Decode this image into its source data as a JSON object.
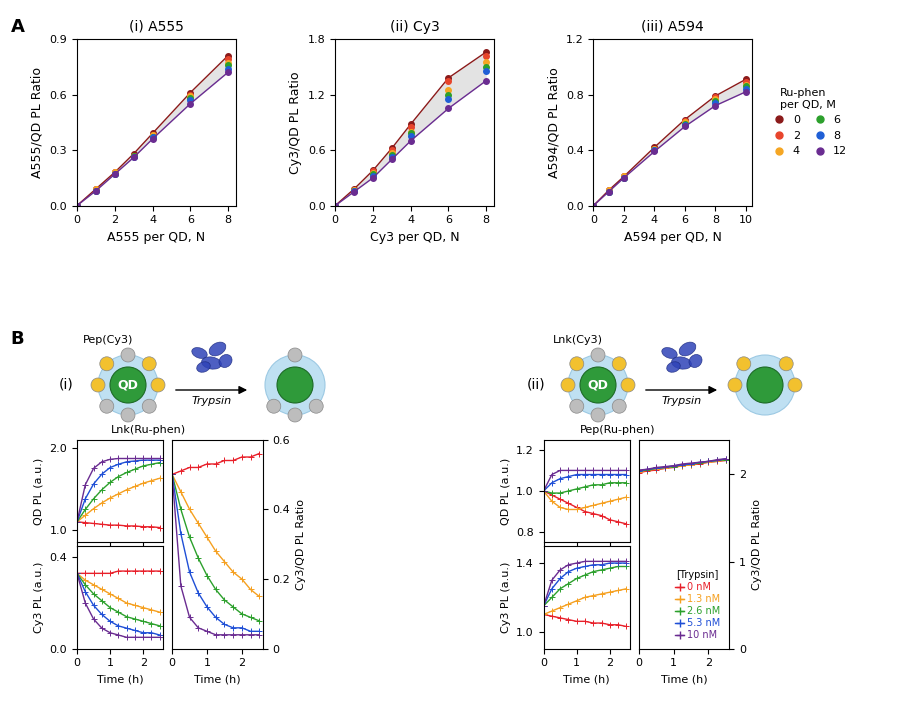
{
  "panel_labels": [
    "A",
    "B"
  ],
  "diagrams": [
    {
      "label": "(i)",
      "top_label": "Pep(Cy3)",
      "bottom_label": "Lnk(Ru-phen)",
      "center": "QD",
      "enzyme": "Trypsin"
    },
    {
      "label": "(ii)",
      "top_label": "Lnk(Cy3)",
      "bottom_label": "Pep(Ru-phen)",
      "center": "QD",
      "enzyme": "Trypsin"
    }
  ],
  "chart_data": [
    {
      "type": "scatter",
      "title": "(i) A555",
      "xlabel": "A555 per QD, N",
      "ylabel": "A555/QD PL Ratio",
      "marker": "o",
      "x": [
        0,
        1,
        2,
        3,
        4,
        6,
        8
      ],
      "xlim": [
        0,
        8.4
      ],
      "xticks": [
        0,
        2,
        4,
        6,
        8
      ],
      "ylim": [
        0,
        0.9
      ],
      "yticks": [
        {
          "value": 0,
          "label": "0.0"
        },
        0.3,
        0.6,
        0.9
      ],
      "series": [
        {
          "name": "0",
          "color": "#8b1a1a",
          "line_style": "solid",
          "values": [
            0,
            0.09,
            0.18,
            0.28,
            0.39,
            0.61,
            0.81
          ]
        },
        {
          "name": "2",
          "color": "#e8452c",
          "line_style": "none",
          "values": [
            0,
            0.09,
            0.18,
            0.27,
            0.38,
            0.6,
            0.79
          ]
        },
        {
          "name": "4",
          "color": "#f5a623",
          "line_style": "none",
          "values": [
            0,
            0.09,
            0.18,
            0.27,
            0.38,
            0.59,
            0.77
          ]
        },
        {
          "name": "6",
          "color": "#2ca02c",
          "line_style": "none",
          "values": [
            0,
            0.08,
            0.17,
            0.27,
            0.37,
            0.58,
            0.76
          ]
        },
        {
          "name": "8",
          "color": "#1f5fd6",
          "line_style": "none",
          "values": [
            0,
            0.08,
            0.17,
            0.26,
            0.37,
            0.57,
            0.74
          ]
        },
        {
          "name": "12",
          "color": "#6a2c91",
          "line_style": "solid",
          "values": [
            0,
            0.08,
            0.17,
            0.26,
            0.36,
            0.55,
            0.72
          ]
        }
      ]
    },
    {
      "type": "scatter",
      "title": "(ii) Cy3",
      "xlabel": "Cy3 per QD, N",
      "ylabel": "Cy3/QD PL Ratio",
      "marker": "o",
      "x": [
        0,
        1,
        2,
        3,
        4,
        6,
        8
      ],
      "xlim": [
        0,
        8.4
      ],
      "xticks": [
        0,
        2,
        4,
        6,
        8
      ],
      "ylim": [
        0,
        1.8
      ],
      "yticks": [
        {
          "value": 0,
          "label": "0.0"
        },
        0.6,
        1.2,
        1.8
      ],
      "series": [
        {
          "name": "0",
          "color": "#8b1a1a",
          "line_style": "solid",
          "values": [
            0,
            0.18,
            0.38,
            0.62,
            0.88,
            1.38,
            1.66
          ]
        },
        {
          "name": "2",
          "color": "#e8452c",
          "line_style": "none",
          "values": [
            0,
            0.17,
            0.37,
            0.6,
            0.85,
            1.35,
            1.62
          ]
        },
        {
          "name": "4",
          "color": "#f5a623",
          "line_style": "none",
          "values": [
            0,
            0.17,
            0.35,
            0.57,
            0.8,
            1.25,
            1.55
          ]
        },
        {
          "name": "6",
          "color": "#2ca02c",
          "line_style": "none",
          "values": [
            0,
            0.16,
            0.34,
            0.55,
            0.78,
            1.2,
            1.5
          ]
        },
        {
          "name": "8",
          "color": "#1f5fd6",
          "line_style": "none",
          "values": [
            0,
            0.16,
            0.32,
            0.53,
            0.75,
            1.15,
            1.45
          ]
        },
        {
          "name": "12",
          "color": "#6a2c91",
          "line_style": "solid",
          "values": [
            0,
            0.15,
            0.3,
            0.5,
            0.7,
            1.05,
            1.35
          ]
        }
      ]
    },
    {
      "type": "scatter",
      "title": "(iii) A594",
      "xlabel": "A594 per QD, N",
      "ylabel": "A594/QD PL Ratio",
      "marker": "o",
      "x": [
        0,
        1,
        2,
        4,
        6,
        8,
        10
      ],
      "xlim": [
        0,
        10.4
      ],
      "xticks": [
        0,
        2,
        4,
        6,
        8,
        10
      ],
      "ylim": [
        0,
        1.2
      ],
      "yticks": [
        {
          "value": 0,
          "label": "0.0"
        },
        0.4,
        0.8,
        1.2
      ],
      "legend": "center left",
      "legend_title": "Ru-phen\nper QD, M",
      "series": [
        {
          "name": "0",
          "color": "#8b1a1a",
          "line_style": "solid",
          "values": [
            0,
            0.11,
            0.21,
            0.42,
            0.62,
            0.79,
            0.91
          ]
        },
        {
          "name": "2",
          "color": "#e8452c",
          "line_style": "none",
          "values": [
            0,
            0.11,
            0.21,
            0.41,
            0.61,
            0.78,
            0.89
          ]
        },
        {
          "name": "4",
          "color": "#f5a623",
          "line_style": "none",
          "values": [
            0,
            0.11,
            0.21,
            0.41,
            0.6,
            0.77,
            0.87
          ]
        },
        {
          "name": "6",
          "color": "#2ca02c",
          "line_style": "none",
          "values": [
            0,
            0.1,
            0.2,
            0.4,
            0.59,
            0.75,
            0.86
          ]
        },
        {
          "name": "8",
          "color": "#1f5fd6",
          "line_style": "none",
          "values": [
            0,
            0.1,
            0.2,
            0.4,
            0.58,
            0.74,
            0.84
          ]
        },
        {
          "name": "12",
          "color": "#6a2c91",
          "line_style": "solid",
          "values": [
            0,
            0.1,
            0.2,
            0.39,
            0.57,
            0.72,
            0.82
          ]
        }
      ]
    },
    {
      "type": "line",
      "ylabel": "QD PL (a.u.)",
      "marker": "+",
      "line_style": "solid",
      "tick_labels": "y",
      "x": [
        0,
        0.25,
        0.5,
        0.75,
        1.0,
        1.25,
        1.5,
        1.75,
        2.0,
        2.25,
        2.5
      ],
      "xlim": [
        0,
        2.6
      ],
      "xticks": [
        0,
        1,
        2
      ],
      "ylim": [
        0.85,
        2.1
      ],
      "yticks": [
        {
          "value": 1,
          "label": "1.0"
        },
        {
          "value": 2,
          "label": "2.0"
        }
      ],
      "series": [
        {
          "color": "#e8202a",
          "values": [
            1.1,
            1.09,
            1.08,
            1.07,
            1.06,
            1.06,
            1.05,
            1.05,
            1.04,
            1.04,
            1.03
          ]
        },
        {
          "color": "#f5a020",
          "values": [
            1.1,
            1.18,
            1.26,
            1.33,
            1.39,
            1.44,
            1.49,
            1.53,
            1.57,
            1.6,
            1.63
          ]
        },
        {
          "color": "#2ca02c",
          "values": [
            1.1,
            1.25,
            1.38,
            1.49,
            1.58,
            1.65,
            1.7,
            1.74,
            1.78,
            1.8,
            1.82
          ]
        },
        {
          "color": "#1f4fd6",
          "values": [
            1.1,
            1.38,
            1.56,
            1.68,
            1.76,
            1.8,
            1.83,
            1.84,
            1.85,
            1.85,
            1.85
          ]
        },
        {
          "color": "#6a2c91",
          "values": [
            1.1,
            1.55,
            1.75,
            1.83,
            1.86,
            1.87,
            1.87,
            1.87,
            1.87,
            1.87,
            1.87
          ]
        }
      ]
    },
    {
      "type": "line",
      "xlabel": "Time (h)",
      "ylabel": "Cy3 PL (a.u.)",
      "marker": "+",
      "line_style": "solid",
      "x": [
        0,
        0.25,
        0.5,
        0.75,
        1.0,
        1.25,
        1.5,
        1.75,
        2.0,
        2.25,
        2.5
      ],
      "xlim": [
        0,
        2.6
      ],
      "xticks": [
        0,
        1,
        2
      ],
      "ylim": [
        0,
        0.45
      ],
      "yticks": [
        {
          "value": 0,
          "label": "0.0"
        },
        0.4
      ],
      "series": [
        {
          "color": "#e8202a",
          "values": [
            0.33,
            0.33,
            0.33,
            0.33,
            0.33,
            0.34,
            0.34,
            0.34,
            0.34,
            0.34,
            0.34
          ]
        },
        {
          "color": "#f5a020",
          "values": [
            0.33,
            0.3,
            0.28,
            0.26,
            0.24,
            0.22,
            0.2,
            0.19,
            0.18,
            0.17,
            0.16
          ]
        },
        {
          "color": "#2ca02c",
          "values": [
            0.33,
            0.28,
            0.24,
            0.21,
            0.18,
            0.16,
            0.14,
            0.13,
            0.12,
            0.11,
            0.1
          ]
        },
        {
          "color": "#1f4fd6",
          "values": [
            0.33,
            0.25,
            0.19,
            0.15,
            0.12,
            0.1,
            0.09,
            0.08,
            0.07,
            0.07,
            0.06
          ]
        },
        {
          "color": "#6a2c91",
          "values": [
            0.33,
            0.2,
            0.13,
            0.09,
            0.07,
            0.06,
            0.05,
            0.05,
            0.05,
            0.05,
            0.05
          ]
        }
      ]
    },
    {
      "type": "line",
      "xlabel": "Time (h)",
      "ylabel": "Cy3/QD PL Ratio",
      "marker": "+",
      "line_style": "solid",
      "x": [
        0,
        0.25,
        0.5,
        0.75,
        1.0,
        1.25,
        1.5,
        1.75,
        2.0,
        2.25,
        2.5
      ],
      "xlim": [
        0,
        2.6
      ],
      "xticks": [
        0,
        1,
        2
      ],
      "ylim": [
        0,
        0.6
      ],
      "yticks": [
        0,
        0.2,
        0.4,
        0.6
      ],
      "series": [
        {
          "color": "#e8202a",
          "values": [
            0.5,
            0.51,
            0.52,
            0.52,
            0.53,
            0.53,
            0.54,
            0.54,
            0.55,
            0.55,
            0.56
          ]
        },
        {
          "color": "#f5a020",
          "values": [
            0.5,
            0.45,
            0.4,
            0.36,
            0.32,
            0.28,
            0.25,
            0.22,
            0.2,
            0.17,
            0.15
          ]
        },
        {
          "color": "#2ca02c",
          "values": [
            0.5,
            0.4,
            0.32,
            0.26,
            0.21,
            0.17,
            0.14,
            0.12,
            0.1,
            0.09,
            0.08
          ]
        },
        {
          "color": "#1f4fd6",
          "values": [
            0.5,
            0.33,
            0.22,
            0.16,
            0.12,
            0.09,
            0.07,
            0.06,
            0.06,
            0.05,
            0.05
          ]
        },
        {
          "color": "#6a2c91",
          "values": [
            0.5,
            0.18,
            0.09,
            0.06,
            0.05,
            0.04,
            0.04,
            0.04,
            0.04,
            0.04,
            0.04
          ]
        }
      ]
    },
    {
      "type": "line",
      "ylabel": "QD PL (a.u.)",
      "marker": "+",
      "line_style": "solid",
      "tick_labels": "y",
      "x": [
        0,
        0.25,
        0.5,
        0.75,
        1.0,
        1.25,
        1.5,
        1.75,
        2.0,
        2.25,
        2.5
      ],
      "xlim": [
        0,
        2.6
      ],
      "xticks": [
        0,
        1,
        2
      ],
      "ylim": [
        0.75,
        1.25
      ],
      "yticks": [
        0.8,
        {
          "value": 1,
          "label": "1.0"
        },
        1.2
      ],
      "series": [
        {
          "color": "#e8202a",
          "values": [
            1.0,
            0.98,
            0.96,
            0.94,
            0.92,
            0.9,
            0.89,
            0.88,
            0.86,
            0.85,
            0.84
          ]
        },
        {
          "color": "#f5a020",
          "values": [
            1.0,
            0.95,
            0.92,
            0.91,
            0.91,
            0.92,
            0.93,
            0.94,
            0.95,
            0.96,
            0.97
          ]
        },
        {
          "color": "#2ca02c",
          "values": [
            1.0,
            0.99,
            0.99,
            1.0,
            1.01,
            1.02,
            1.03,
            1.03,
            1.04,
            1.04,
            1.04
          ]
        },
        {
          "color": "#1f4fd6",
          "values": [
            1.0,
            1.04,
            1.06,
            1.07,
            1.08,
            1.08,
            1.08,
            1.08,
            1.08,
            1.08,
            1.08
          ]
        },
        {
          "color": "#6a2c91",
          "values": [
            1.0,
            1.08,
            1.1,
            1.1,
            1.1,
            1.1,
            1.1,
            1.1,
            1.1,
            1.1,
            1.1
          ]
        }
      ]
    },
    {
      "type": "line",
      "xlabel": "Time (h)",
      "ylabel": "Cy3 PL (a.u.)",
      "marker": "+",
      "line_style": "solid",
      "x": [
        0,
        0.25,
        0.5,
        0.75,
        1.0,
        1.25,
        1.5,
        1.75,
        2.0,
        2.25,
        2.5
      ],
      "xlim": [
        0,
        2.6
      ],
      "xticks": [
        0,
        1,
        2
      ],
      "ylim": [
        0.9,
        1.5
      ],
      "yticks": [
        {
          "value": 1,
          "label": "1.0"
        },
        1.4
      ],
      "series": [
        {
          "color": "#e8202a",
          "values": [
            1.1,
            1.09,
            1.08,
            1.07,
            1.06,
            1.06,
            1.05,
            1.05,
            1.04,
            1.04,
            1.03
          ]
        },
        {
          "color": "#f5a020",
          "values": [
            1.1,
            1.12,
            1.14,
            1.16,
            1.18,
            1.2,
            1.21,
            1.22,
            1.23,
            1.24,
            1.25
          ]
        },
        {
          "color": "#2ca02c",
          "values": [
            1.15,
            1.2,
            1.25,
            1.28,
            1.31,
            1.33,
            1.35,
            1.36,
            1.37,
            1.38,
            1.38
          ]
        },
        {
          "color": "#1f4fd6",
          "values": [
            1.15,
            1.25,
            1.31,
            1.35,
            1.37,
            1.38,
            1.39,
            1.39,
            1.4,
            1.4,
            1.4
          ]
        },
        {
          "color": "#6a2c91",
          "values": [
            1.15,
            1.3,
            1.36,
            1.39,
            1.4,
            1.41,
            1.41,
            1.41,
            1.41,
            1.41,
            1.41
          ]
        }
      ]
    },
    {
      "type": "line",
      "xlabel": "Time (h)",
      "ylabel": "Cy3/QD PL Ratio",
      "marker": "+",
      "line_style": "solid",
      "x": [
        0,
        0.25,
        0.5,
        0.75,
        1.0,
        1.25,
        1.5,
        1.75,
        2.0,
        2.25,
        2.5
      ],
      "xlim": [
        0,
        2.6
      ],
      "xticks": [
        0,
        1,
        2
      ],
      "ylim": [
        0,
        2.4
      ],
      "yticks": [
        0,
        1,
        2
      ],
      "legend": "lower right",
      "legend_title": "[Trypsin]",
      "series": [
        {
          "name": "0 nM",
          "color": "#e8202a",
          "values": [
            2.02,
            2.04,
            2.05,
            2.07,
            2.08,
            2.1,
            2.11,
            2.12,
            2.14,
            2.15,
            2.16
          ]
        },
        {
          "name": "1.3 nM",
          "color": "#f5a020",
          "values": [
            2.03,
            2.05,
            2.06,
            2.07,
            2.09,
            2.1,
            2.11,
            2.13,
            2.14,
            2.15,
            2.17
          ]
        },
        {
          "name": "2.6 nM",
          "color": "#2ca02c",
          "values": [
            2.04,
            2.05,
            2.07,
            2.08,
            2.09,
            2.11,
            2.12,
            2.13,
            2.15,
            2.16,
            2.17
          ]
        },
        {
          "name": "5.3 nM",
          "color": "#1f4fd6",
          "values": [
            2.04,
            2.06,
            2.07,
            2.08,
            2.1,
            2.11,
            2.12,
            2.14,
            2.15,
            2.16,
            2.18
          ]
        },
        {
          "name": "10 nM",
          "color": "#6a2c91",
          "values": [
            2.05,
            2.06,
            2.08,
            2.09,
            2.1,
            2.12,
            2.13,
            2.14,
            2.15,
            2.17,
            2.18
          ]
        }
      ]
    }
  ]
}
